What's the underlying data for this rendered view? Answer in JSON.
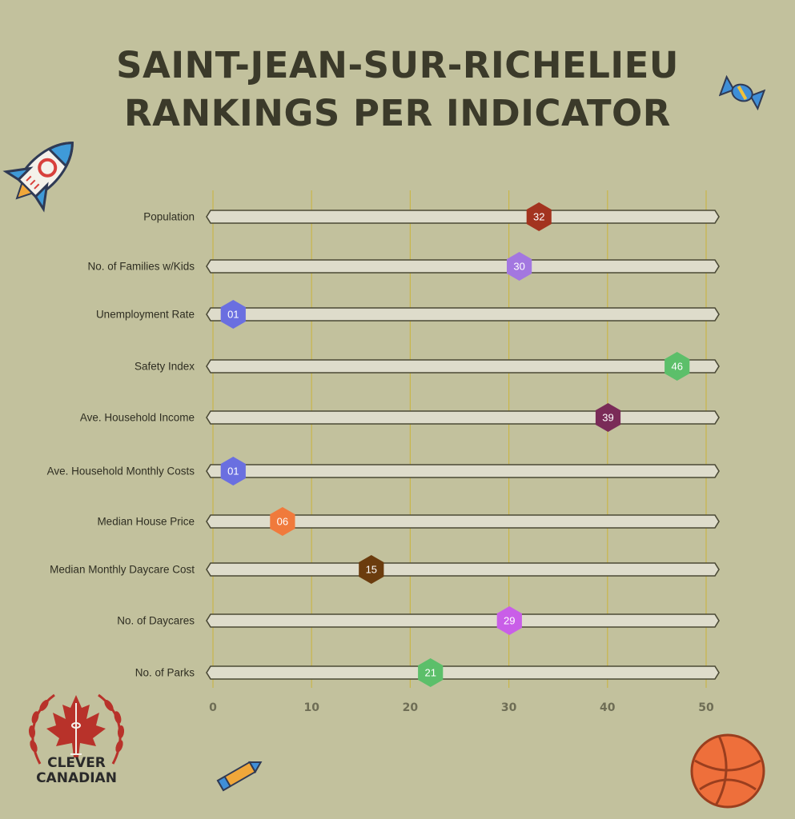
{
  "title": {
    "line1": "SAINT-JEAN-SUR-RICHELIEU",
    "line2": "RANKINGS PER INDICATOR"
  },
  "brand": {
    "line1": "CLEVER",
    "line2": "CANADIAN"
  },
  "colors": {
    "background": "#c2c19d",
    "track_fill": "#dedccb",
    "track_stroke": "#4a4935",
    "grid": "#c9b64a",
    "title": "#3b3a2a"
  },
  "chart_data": {
    "type": "bar",
    "orientation": "horizontal",
    "title": "SAINT-JEAN-SUR-RICHELIEU RANKINGS PER INDICATOR",
    "categories": [
      "Population",
      "No. of Families w/Kids",
      "Unemployment Rate",
      "Safety Index",
      "Ave. Household Income",
      "Ave. Household Monthly Costs",
      "Median House Price",
      "Median Monthly Daycare Cost",
      "No. of Daycares",
      "No. of Parks"
    ],
    "values": [
      32,
      30,
      1,
      46,
      39,
      1,
      6,
      15,
      29,
      21
    ],
    "value_labels": [
      "32",
      "30",
      "01",
      "46",
      "39",
      "01",
      "06",
      "15",
      "29",
      "21"
    ],
    "marker_colors": [
      "#a3331f",
      "#a377e0",
      "#6a6fe0",
      "#5cbf6a",
      "#7a2b58",
      "#6a6fe0",
      "#f07a3c",
      "#6b3c0e",
      "#c95ee8",
      "#5cbf6a"
    ],
    "xticks": [
      0,
      10,
      20,
      30,
      40,
      50
    ],
    "xlim": [
      0,
      50
    ],
    "grid": true
  }
}
